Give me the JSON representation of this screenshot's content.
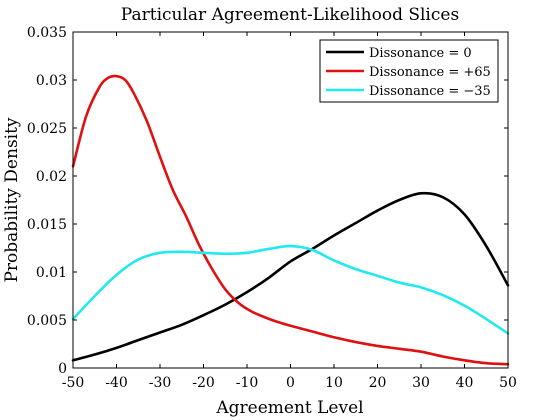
{
  "chart_data": {
    "type": "line",
    "title": "Particular Agreement-Likelihood Slices",
    "xlabel": "Agreement Level",
    "ylabel": "Probability Density",
    "xlim": [
      -50,
      50
    ],
    "ylim": [
      0,
      0.035
    ],
    "xticks": [
      -50,
      -40,
      -30,
      -20,
      -10,
      0,
      10,
      20,
      30,
      40,
      50
    ],
    "yticks": [
      0,
      0.005,
      0.01,
      0.015,
      0.02,
      0.025,
      0.03,
      0.035
    ],
    "xtick_labels": [
      "-50",
      "-40",
      "-30",
      "-20",
      "-10",
      "0",
      "10",
      "20",
      "30",
      "40",
      "50"
    ],
    "ytick_labels": [
      "0",
      "0.005",
      "0.01",
      "0.015",
      "0.02",
      "0.025",
      "0.03",
      "0.035"
    ],
    "grid": false,
    "legend_position": "top-right",
    "series": [
      {
        "name": "Dissonance = 0",
        "color": "#000000",
        "x": [
          -50,
          -45,
          -40,
          -35,
          -30,
          -25,
          -20,
          -15,
          -10,
          -5,
          0,
          5,
          10,
          15,
          20,
          25,
          30,
          35,
          40,
          45,
          50
        ],
        "y": [
          0.0008,
          0.0014,
          0.0021,
          0.0029,
          0.0037,
          0.0045,
          0.0055,
          0.0066,
          0.0079,
          0.0094,
          0.0111,
          0.0124,
          0.0138,
          0.0151,
          0.0164,
          0.0175,
          0.0182,
          0.0178,
          0.016,
          0.0127,
          0.0086
        ]
      },
      {
        "name": "Dissonance = +65",
        "color": "#e01010",
        "x": [
          -50,
          -47,
          -44,
          -42,
          -40,
          -38,
          -36,
          -33,
          -30,
          -27,
          -24,
          -21,
          -18,
          -15,
          -12,
          -9,
          -6,
          -3,
          0,
          5,
          10,
          15,
          20,
          25,
          30,
          35,
          40,
          45,
          50
        ],
        "y": [
          0.021,
          0.0262,
          0.0292,
          0.0302,
          0.0304,
          0.03,
          0.0286,
          0.0257,
          0.022,
          0.0185,
          0.0158,
          0.0128,
          0.0103,
          0.0082,
          0.0068,
          0.0059,
          0.0053,
          0.0048,
          0.0044,
          0.0038,
          0.0032,
          0.0027,
          0.0023,
          0.002,
          0.0017,
          0.0012,
          0.0008,
          0.0005,
          0.0004
        ]
      },
      {
        "name": "Dissonance = −35",
        "color": "#22e8f0",
        "x": [
          -50,
          -45,
          -40,
          -35,
          -30,
          -25,
          -20,
          -15,
          -10,
          -5,
          0,
          5,
          10,
          15,
          20,
          25,
          30,
          35,
          40,
          45,
          50
        ],
        "y": [
          0.0051,
          0.0075,
          0.0097,
          0.0113,
          0.012,
          0.0121,
          0.012,
          0.0119,
          0.012,
          0.0124,
          0.0127,
          0.0123,
          0.0112,
          0.0103,
          0.0096,
          0.0089,
          0.0084,
          0.0076,
          0.0065,
          0.0051,
          0.0036
        ]
      }
    ]
  }
}
